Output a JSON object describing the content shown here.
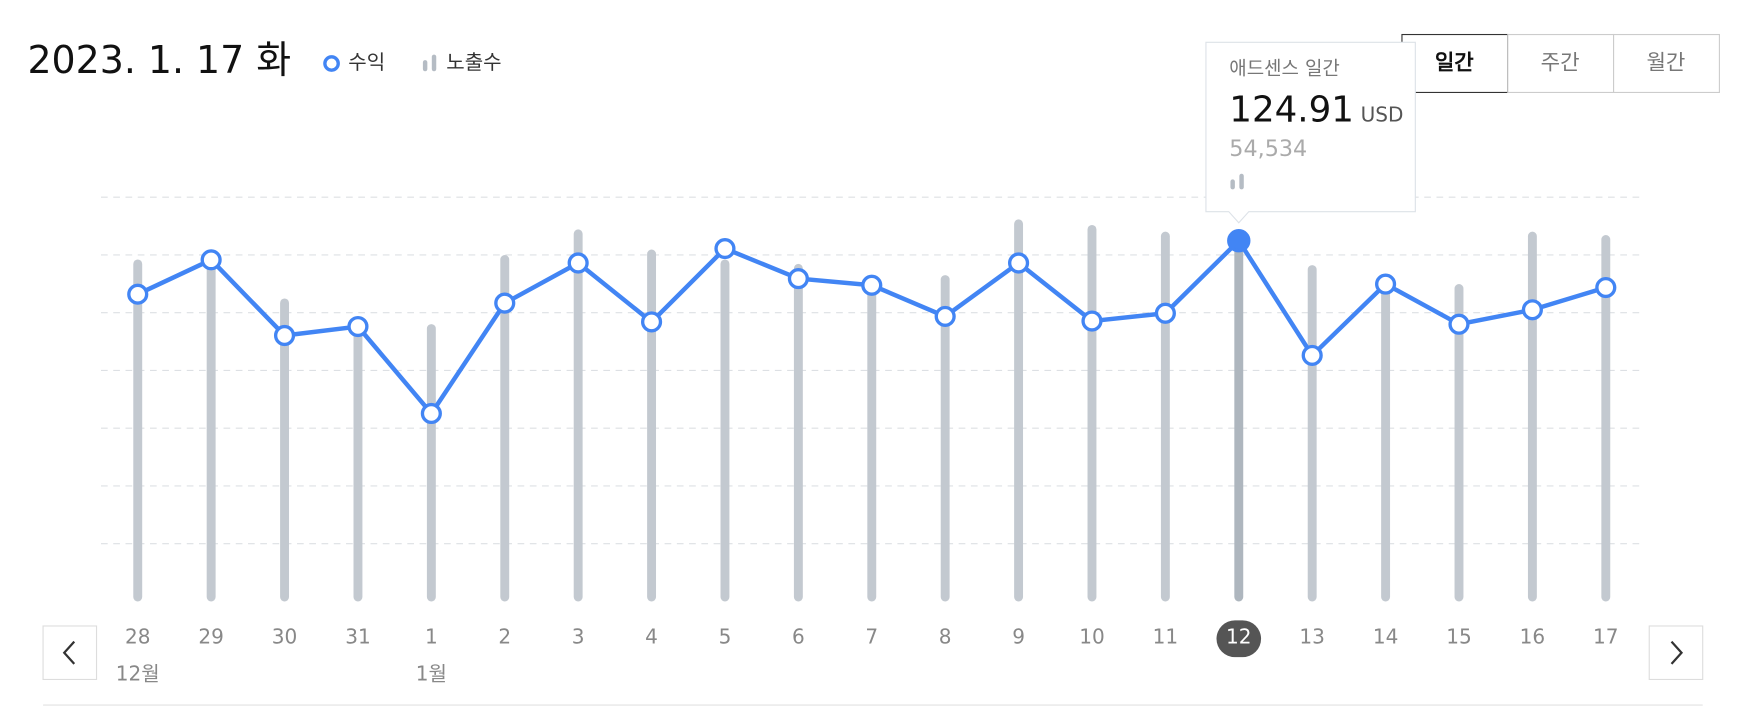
{
  "title": "2023. 1. 17 화",
  "controls": {
    "period_buttons": [
      "일간",
      "주간",
      "월간"
    ],
    "selected": 0
  },
  "tooltip": {
    "title": "애드센스 일간",
    "unit": "USD"
  },
  "chart_data": {
    "type": "combo",
    "categories": [
      "28",
      "29",
      "30",
      "31",
      "1",
      "2",
      "3",
      "4",
      "5",
      "6",
      "7",
      "8",
      "9",
      "10",
      "11",
      "12",
      "13",
      "14",
      "15",
      "16",
      "17"
    ],
    "month_labels": [
      "12월",
      null,
      null,
      null,
      "1월",
      null,
      null,
      null,
      null,
      null,
      null,
      null,
      null,
      null,
      null,
      null,
      null,
      null,
      null,
      null,
      null
    ],
    "selected_index": 15,
    "series": [
      {
        "name": "수익",
        "kind": "line",
        "color": "#4285f4",
        "values": [
          106.4,
          118.3,
          92.1,
          95.2,
          65.1,
          103.3,
          117.2,
          96.8,
          122.2,
          111.8,
          109.5,
          98.7,
          117.2,
          97.1,
          99.8,
          124.91,
          85.2,
          109.9,
          96.0,
          101.0,
          108.7
        ]
      },
      {
        "name": "노출수",
        "kind": "bar",
        "color": "#c3c9d0",
        "axis": "y2",
        "values": [
          50750,
          51240,
          44960,
          41320,
          41160,
          51410,
          55210,
          52230,
          50750,
          50090,
          47600,
          48430,
          56700,
          55870,
          54880,
          54534,
          49920,
          47940,
          47110,
          54880,
          54380
        ],
        "value_labels": [
          null,
          null,
          null,
          null,
          null,
          null,
          null,
          null,
          null,
          null,
          null,
          null,
          null,
          null,
          null,
          "54,534",
          null,
          null,
          null,
          null,
          null
        ]
      }
    ],
    "ylim": [
      0,
      140
    ],
    "yticks": [
      20,
      40,
      60,
      80,
      100,
      120,
      140
    ],
    "y2lim": [
      0,
      60000
    ],
    "grid": true
  }
}
